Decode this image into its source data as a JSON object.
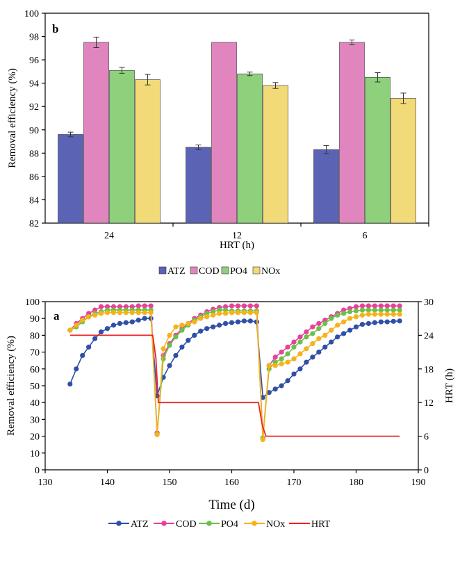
{
  "chart_data": [
    {
      "panel": "b",
      "type": "bar",
      "xlabel": "HRT (h)",
      "ylabel": "Removal efficiency (%)",
      "ylim": [
        82,
        100
      ],
      "yticks": [
        82,
        84,
        86,
        88,
        90,
        92,
        94,
        96,
        98,
        100
      ],
      "categories": [
        "24",
        "12",
        "6"
      ],
      "series": [
        {
          "name": "ATZ",
          "color": "#5b63b5",
          "values": [
            89.6,
            88.5,
            88.3
          ],
          "errors": [
            0.2,
            0.2,
            0.35
          ]
        },
        {
          "name": "COD",
          "color": "#e085be",
          "values": [
            97.5,
            97.5,
            97.5
          ],
          "errors": [
            0.45,
            0.0,
            0.2
          ]
        },
        {
          "name": "PO4",
          "color": "#8fd07d",
          "values": [
            95.1,
            94.8,
            94.5
          ],
          "errors": [
            0.25,
            0.15,
            0.4
          ]
        },
        {
          "name": "NOx",
          "color": "#f1da77",
          "values": [
            94.3,
            93.8,
            92.7
          ],
          "errors": [
            0.45,
            0.25,
            0.45
          ]
        }
      ],
      "legend_position": "bottom"
    },
    {
      "panel": "a",
      "type": "line",
      "xlabel": "Time (d)",
      "ylabel": "Removal efficiency (%)",
      "y2label": "HRT (h)",
      "xlim": [
        130,
        190
      ],
      "xticks": [
        130,
        140,
        150,
        160,
        170,
        180,
        190
      ],
      "ylim": [
        0,
        100
      ],
      "yticks": [
        0,
        10,
        20,
        30,
        40,
        50,
        60,
        70,
        80,
        90,
        100
      ],
      "y2lim": [
        0,
        30
      ],
      "y2ticks": [
        0,
        6,
        12,
        18,
        24,
        30
      ],
      "series": [
        {
          "name": "ATZ",
          "color": "#2f4fa8",
          "marker": "circle",
          "x": [
            134,
            135,
            136,
            137,
            138,
            139,
            140,
            141,
            142,
            143,
            144,
            145,
            146,
            147,
            148,
            149,
            150,
            151,
            152,
            153,
            154,
            155,
            156,
            157,
            158,
            159,
            160,
            161,
            162,
            163,
            164,
            165,
            166,
            167,
            168,
            169,
            170,
            171,
            172,
            173,
            174,
            175,
            176,
            177,
            178,
            179,
            180,
            181,
            182,
            183,
            184,
            185,
            186,
            187
          ],
          "y": [
            51,
            60,
            68,
            73,
            78,
            82,
            84,
            86,
            87,
            87.5,
            88,
            89,
            90,
            90,
            44,
            55,
            62,
            68,
            73,
            77,
            80,
            82.5,
            84,
            85,
            86,
            87,
            87.5,
            88,
            88.5,
            88.5,
            88,
            43,
            46,
            48,
            50,
            53,
            57,
            60,
            64,
            67,
            70,
            73,
            76,
            79,
            81,
            83,
            85,
            86.5,
            87,
            87.5,
            88,
            88,
            88.3,
            88.5
          ]
        },
        {
          "name": "COD",
          "color": "#e8419a",
          "marker": "circle",
          "x": [
            134,
            135,
            136,
            137,
            138,
            139,
            140,
            141,
            142,
            143,
            144,
            145,
            146,
            147,
            148,
            149,
            150,
            151,
            152,
            153,
            154,
            155,
            156,
            157,
            158,
            159,
            160,
            161,
            162,
            163,
            164,
            165,
            166,
            167,
            168,
            169,
            170,
            171,
            172,
            173,
            174,
            175,
            176,
            177,
            178,
            179,
            180,
            181,
            182,
            183,
            184,
            185,
            186,
            187
          ],
          "y": [
            83,
            87,
            90,
            93,
            95,
            97,
            97,
            97,
            97,
            97,
            97,
            97.5,
            97.5,
            97.5,
            22,
            68,
            75,
            80,
            84,
            87,
            90,
            92,
            94,
            95.5,
            96.5,
            97,
            97.5,
            97.5,
            97.5,
            97.5,
            97.5,
            19,
            62,
            67,
            70,
            73,
            76,
            79,
            82,
            85,
            87,
            89,
            91,
            93,
            95,
            96,
            97,
            97.5,
            97.5,
            97.5,
            97.5,
            97.5,
            97.5,
            97.5
          ]
        },
        {
          "name": "PO4",
          "color": "#6cc04a",
          "marker": "circle",
          "x": [
            134,
            135,
            136,
            137,
            138,
            139,
            140,
            141,
            142,
            143,
            144,
            145,
            146,
            147,
            148,
            149,
            150,
            151,
            152,
            153,
            154,
            155,
            156,
            157,
            158,
            159,
            160,
            161,
            162,
            163,
            164,
            165,
            166,
            167,
            168,
            169,
            170,
            171,
            172,
            173,
            174,
            175,
            176,
            177,
            178,
            179,
            180,
            181,
            182,
            183,
            184,
            185,
            186,
            187
          ],
          "y": [
            83,
            85,
            88,
            91,
            93,
            94,
            95,
            95,
            95,
            95,
            95,
            95,
            95,
            95,
            21,
            66,
            74,
            79,
            83,
            86,
            89,
            91,
            93,
            94,
            95,
            95,
            94.5,
            94.5,
            94.5,
            94.5,
            94.5,
            19,
            60,
            64,
            66,
            69,
            73,
            76,
            79,
            81,
            84,
            87,
            90,
            92,
            93,
            94,
            94.5,
            95,
            95,
            95,
            95,
            95,
            95,
            95
          ]
        },
        {
          "name": "NOx",
          "color": "#f5b31b",
          "marker": "circle",
          "x": [
            134,
            135,
            136,
            137,
            138,
            139,
            140,
            141,
            142,
            143,
            144,
            145,
            146,
            147,
            148,
            149,
            150,
            151,
            152,
            153,
            154,
            155,
            156,
            157,
            158,
            159,
            160,
            161,
            162,
            163,
            164,
            165,
            166,
            167,
            168,
            169,
            170,
            171,
            172,
            173,
            174,
            175,
            176,
            177,
            178,
            179,
            180,
            181,
            182,
            183,
            184,
            185,
            186,
            187
          ],
          "y": [
            83,
            86,
            89,
            91,
            92,
            93,
            93.5,
            93.5,
            93.5,
            93.5,
            93.5,
            93.5,
            93.5,
            93.5,
            21,
            72,
            80,
            85,
            86,
            87,
            88,
            90,
            91,
            92,
            93,
            93,
            93.5,
            93.5,
            93.5,
            93.5,
            93.5,
            18,
            62,
            62,
            63,
            64,
            66,
            69,
            72,
            75,
            78,
            80,
            83,
            86,
            88,
            90,
            91,
            92,
            92.5,
            92.5,
            92.5,
            92.5,
            92.5,
            92.5
          ]
        },
        {
          "name": "HRT",
          "color": "#ee2222",
          "marker": "none",
          "axis": "right",
          "x": [
            134,
            147.3,
            147.8,
            148.2,
            164.3,
            164.9,
            165.5,
            187
          ],
          "y": [
            24,
            24,
            20,
            12,
            12,
            8,
            6,
            6
          ]
        }
      ],
      "legend_position": "bottom"
    }
  ]
}
